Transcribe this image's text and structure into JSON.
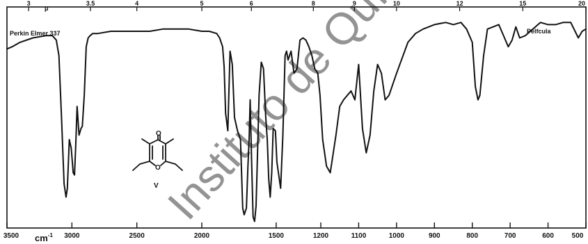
{
  "chart_data": {
    "type": "line",
    "instrument_label": "Perkin Elmer 337",
    "phase_label": "Pelfcula",
    "compound_label": "V",
    "x_bottom_unit": "cm",
    "x_bottom_unit_sup": "-1",
    "x_top_unit": "μ",
    "watermark": "Instituto de Química",
    "xlim": [
      3500,
      500
    ],
    "bottom_ticks": [
      "3500",
      "3000",
      "2500",
      "2000",
      "1500",
      "1200",
      "1100",
      "1000",
      "900",
      "800",
      "700",
      "600",
      "500"
    ],
    "top_ticks": [
      "3",
      "3.5",
      "4",
      "5",
      "6",
      "8",
      "9",
      "10",
      "12",
      "15",
      "20"
    ],
    "series": [
      {
        "x": [
          3500,
          3460,
          3400,
          3300,
          3200,
          3150,
          3120,
          3100,
          3080,
          3060,
          3045,
          3035,
          3020,
          3005,
          2990,
          2980,
          2970,
          2960,
          2945,
          2930,
          2920,
          2905,
          2890,
          2875,
          2860,
          2840,
          2800,
          2700,
          2600,
          2500,
          2400,
          2300,
          2200,
          2100,
          2000,
          1950,
          1900,
          1880,
          1860,
          1850,
          1840,
          1825,
          1810,
          1795,
          1780,
          1760,
          1740,
          1725,
          1715,
          1700,
          1690,
          1682,
          1675,
          1665,
          1655,
          1645,
          1635,
          1625,
          1615,
          1600,
          1585,
          1570,
          1560,
          1550,
          1540,
          1530,
          1520,
          1505,
          1495,
          1485,
          1470,
          1455,
          1440,
          1430,
          1420,
          1400,
          1380,
          1360,
          1340,
          1320,
          1300,
          1280,
          1260,
          1240,
          1220,
          1205,
          1195,
          1185,
          1175,
          1160,
          1150,
          1140,
          1120,
          1110,
          1100,
          1090,
          1080,
          1070,
          1060,
          1050,
          1040,
          1030,
          1020,
          1000,
          970,
          950,
          930,
          900,
          870,
          850,
          830,
          815,
          800,
          792,
          785,
          780,
          770,
          760,
          730,
          715,
          705,
          695,
          685,
          675,
          660,
          640,
          620,
          600,
          580,
          560,
          540,
          520,
          510,
          500
        ],
        "y": [
          81,
          82,
          84,
          86,
          87,
          87,
          85,
          78,
          50,
          20,
          14,
          18,
          40,
          36,
          25,
          24,
          38,
          55,
          42,
          45,
          46,
          60,
          82,
          86,
          87,
          88,
          88,
          89,
          89,
          89,
          89,
          90,
          90,
          90,
          89,
          89,
          88,
          86,
          82,
          73,
          52,
          44,
          80,
          74,
          50,
          44,
          40,
          9,
          6,
          9,
          28,
          40,
          58,
          30,
          5,
          3,
          10,
          35,
          60,
          75,
          72,
          50,
          40,
          22,
          14,
          25,
          45,
          44,
          30,
          25,
          18,
          42,
          78,
          80,
          76,
          80,
          70,
          72,
          85,
          86,
          85,
          82,
          78,
          72,
          70,
          60,
          40,
          28,
          25,
          42,
          55,
          58,
          62,
          58,
          74,
          45,
          34,
          42,
          62,
          74,
          70,
          58,
          60,
          70,
          84,
          88,
          90,
          92,
          93,
          92,
          93,
          90,
          84,
          64,
          58,
          60,
          78,
          90,
          92,
          86,
          82,
          85,
          91,
          86,
          87,
          90,
          93,
          92,
          92,
          93,
          93,
          86,
          89,
          90
        ]
      }
    ],
    "colors": {
      "line": "#111111",
      "background": "#ffffff",
      "frame": "#111111",
      "watermark": "#cfcfcf"
    }
  }
}
